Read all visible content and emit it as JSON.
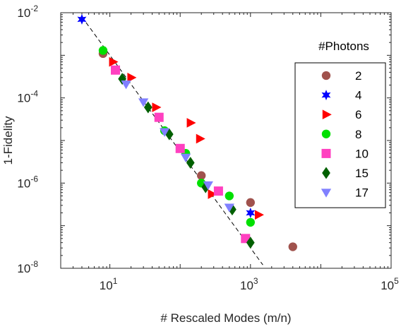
{
  "chart_data": {
    "type": "scatter",
    "xlabel": "# Rescaled Modes (m/n)",
    "ylabel": "1-Fidelity",
    "x_scale": "log",
    "y_scale": "log",
    "xlim": [
      2,
      100000
    ],
    "ylim": [
      1e-08,
      0.01
    ],
    "grid": false,
    "x_ticks": [
      {
        "base": "10",
        "exp": "1",
        "value": 10
      },
      {
        "base": "10",
        "exp": "3",
        "value": 1000
      },
      {
        "base": "10",
        "exp": "5",
        "value": 100000
      }
    ],
    "y_ticks": [
      {
        "base": "10",
        "exp": "-8",
        "value": 1e-08
      },
      {
        "base": "10",
        "exp": "-6",
        "value": 1e-06
      },
      {
        "base": "10",
        "exp": "-4",
        "value": 0.0001
      },
      {
        "base": "10",
        "exp": "-2",
        "value": 0.01
      }
    ],
    "legend": {
      "title": "#Photons",
      "position": "right"
    },
    "fit_line": {
      "style": "dashed",
      "color": "#000000",
      "points": [
        [
          4,
          0.008
        ],
        [
          1500,
          1.2e-08
        ]
      ]
    },
    "series": [
      {
        "name": "2",
        "marker": "circle",
        "color": "#a0524d",
        "points": [
          [
            8,
            0.0011
          ],
          [
            200,
            1.5e-06
          ],
          [
            1000,
            3.5e-07
          ],
          [
            4000,
            3.2e-08
          ]
        ]
      },
      {
        "name": "4",
        "marker": "star",
        "color": "#0000ff",
        "points": [
          [
            4,
            0.007
          ],
          [
            1000,
            2e-07
          ]
        ]
      },
      {
        "name": "6",
        "marker": "triangle-right",
        "color": "#ff0000",
        "points": [
          [
            11,
            0.0007
          ],
          [
            20,
            0.0003
          ],
          [
            45,
            6e-05
          ],
          [
            140,
            2.6e-05
          ],
          [
            190,
            1.1e-05
          ],
          [
            280,
            5.5e-07
          ],
          [
            1300,
            1.8e-07
          ]
        ]
      },
      {
        "name": "8",
        "marker": "circle",
        "color": "#00e000",
        "points": [
          [
            8,
            0.0013
          ],
          [
            60,
            1.7e-05
          ],
          [
            120,
            5e-06
          ],
          [
            200,
            1e-06
          ],
          [
            500,
            5e-07
          ],
          [
            1000,
            1.2e-07
          ]
        ]
      },
      {
        "name": "10",
        "marker": "square",
        "color": "#ff40c0",
        "points": [
          [
            12,
            0.00045
          ],
          [
            50,
            3.5e-05
          ],
          [
            100,
            6.5e-06
          ],
          [
            350,
            6.5e-07
          ],
          [
            850,
            5e-08
          ]
        ]
      },
      {
        "name": "15",
        "marker": "diamond",
        "color": "#006000",
        "points": [
          [
            15,
            0.00028
          ],
          [
            35,
            6e-05
          ],
          [
            70,
            1.4e-05
          ],
          [
            140,
            3e-06
          ],
          [
            230,
            8e-07
          ],
          [
            550,
            2.4e-07
          ],
          [
            1000,
            4e-08
          ]
        ]
      },
      {
        "name": "17",
        "marker": "triangle-down",
        "color": "#8080ff",
        "points": [
          [
            17,
            0.00021
          ],
          [
            30,
            8e-05
          ],
          [
            60,
            1.6e-05
          ],
          [
            120,
            4e-06
          ],
          [
            250,
            9e-07
          ],
          [
            500,
            2.7e-07
          ]
        ]
      }
    ]
  }
}
